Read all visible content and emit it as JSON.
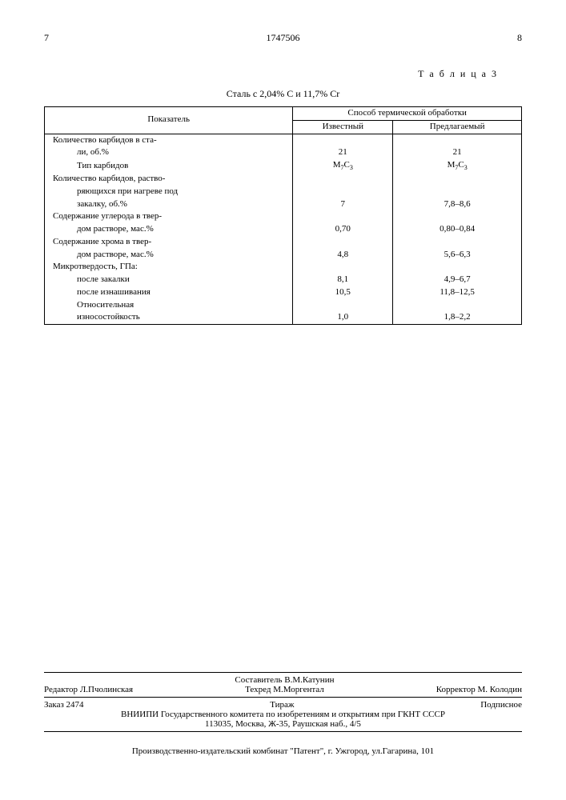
{
  "header": {
    "page_left": "7",
    "doc_number": "1747506",
    "page_right": "8"
  },
  "table_label": "Т а б л и ц а 3",
  "subtitle": "Сталь с 2,04% С и 11,7% Cr",
  "thead": {
    "col1": "Показатель",
    "col_span": "Способ термической обработки",
    "col2": "Известный",
    "col3": "Предлагаемый"
  },
  "rows": [
    {
      "label": "Количество карбидов в ста-",
      "v1": "",
      "v2": ""
    },
    {
      "label": "ли, об.%",
      "indent": true,
      "v1": "21",
      "v2": "21"
    },
    {
      "label": "Тип карбидов",
      "indent": true,
      "v1": "M7C3",
      "v2": "M7C3",
      "chem": true
    },
    {
      "label": "Количество карбидов, раство-",
      "v1": "",
      "v2": ""
    },
    {
      "label": "ряющихся при нагреве под",
      "indent": true,
      "v1": "",
      "v2": ""
    },
    {
      "label": "закалку, об.%",
      "indent": true,
      "v1": "7",
      "v2": "7,8–8,6"
    },
    {
      "label": "Содержание углерода в твер-",
      "v1": "",
      "v2": ""
    },
    {
      "label": "дом растворе, мас.%",
      "indent": true,
      "v1": "0,70",
      "v2": "0,80–0,84"
    },
    {
      "label": "Содержание хрома в твер-",
      "v1": "",
      "v2": ""
    },
    {
      "label": "дом растворе, мас.%",
      "indent": true,
      "v1": "4,8",
      "v2": "5,6–6,3"
    },
    {
      "label": "Микротвердость, ГПа:",
      "v1": "",
      "v2": ""
    },
    {
      "label": "после закалки",
      "indent": true,
      "v1": "8,1",
      "v2": "4,9–6,7"
    },
    {
      "label": "после изнашивания",
      "indent": true,
      "v1": "10,5",
      "v2": "11,8–12,5"
    },
    {
      "label": "Относительная",
      "indent": true,
      "v1": "",
      "v2": ""
    },
    {
      "label": "износостойкость",
      "indent": true,
      "v1": "1,0",
      "v2": "1,8–2,2"
    }
  ],
  "footer": {
    "editor_label": "Редактор",
    "editor": "Л.Пчолинская",
    "compiler_label": "Составитель",
    "compiler": "В.М.Катунин",
    "tech_label": "Техред",
    "tech": "М.Моргентал",
    "corrector_label": "Корректор",
    "corrector": "М. Колодин",
    "order": "Заказ 2474",
    "tirazh": "Тираж",
    "podpis": "Подписное",
    "addr1": "ВНИИПИ Государственного комитета по изобретениям и открытиям при ГКНТ СССР",
    "addr2": "113035, Москва, Ж-35, Раушская наб., 4/5",
    "press": "Производственно-издательский комбинат \"Патент\", г. Ужгород, ул.Гагарина, 101"
  }
}
